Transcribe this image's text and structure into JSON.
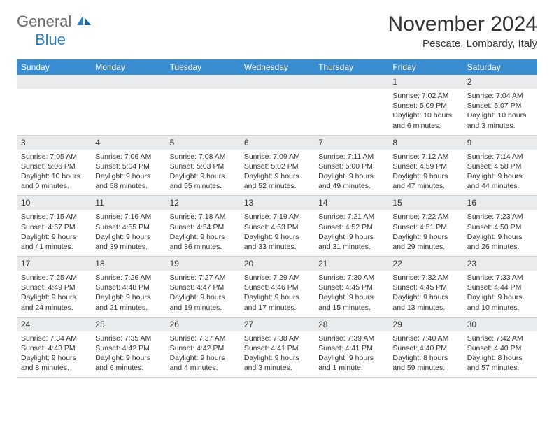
{
  "logo": {
    "text1": "General",
    "text2": "Blue"
  },
  "title": "November 2024",
  "location": "Pescate, Lombardy, Italy",
  "colors": {
    "header_bg": "#3a8dd0",
    "header_text": "#ffffff",
    "daynum_bg": "#e9ebec",
    "border": "#d0d0d0",
    "text": "#333333",
    "logo_gray": "#6b6b6b",
    "logo_blue": "#2f7fbf"
  },
  "weekdays": [
    "Sunday",
    "Monday",
    "Tuesday",
    "Wednesday",
    "Thursday",
    "Friday",
    "Saturday"
  ],
  "weeks": [
    [
      null,
      null,
      null,
      null,
      null,
      {
        "n": "1",
        "sr": "7:02 AM",
        "ss": "5:09 PM",
        "dl": "10 hours and 6 minutes."
      },
      {
        "n": "2",
        "sr": "7:04 AM",
        "ss": "5:07 PM",
        "dl": "10 hours and 3 minutes."
      }
    ],
    [
      {
        "n": "3",
        "sr": "7:05 AM",
        "ss": "5:06 PM",
        "dl": "10 hours and 0 minutes."
      },
      {
        "n": "4",
        "sr": "7:06 AM",
        "ss": "5:04 PM",
        "dl": "9 hours and 58 minutes."
      },
      {
        "n": "5",
        "sr": "7:08 AM",
        "ss": "5:03 PM",
        "dl": "9 hours and 55 minutes."
      },
      {
        "n": "6",
        "sr": "7:09 AM",
        "ss": "5:02 PM",
        "dl": "9 hours and 52 minutes."
      },
      {
        "n": "7",
        "sr": "7:11 AM",
        "ss": "5:00 PM",
        "dl": "9 hours and 49 minutes."
      },
      {
        "n": "8",
        "sr": "7:12 AM",
        "ss": "4:59 PM",
        "dl": "9 hours and 47 minutes."
      },
      {
        "n": "9",
        "sr": "7:14 AM",
        "ss": "4:58 PM",
        "dl": "9 hours and 44 minutes."
      }
    ],
    [
      {
        "n": "10",
        "sr": "7:15 AM",
        "ss": "4:57 PM",
        "dl": "9 hours and 41 minutes."
      },
      {
        "n": "11",
        "sr": "7:16 AM",
        "ss": "4:55 PM",
        "dl": "9 hours and 39 minutes."
      },
      {
        "n": "12",
        "sr": "7:18 AM",
        "ss": "4:54 PM",
        "dl": "9 hours and 36 minutes."
      },
      {
        "n": "13",
        "sr": "7:19 AM",
        "ss": "4:53 PM",
        "dl": "9 hours and 33 minutes."
      },
      {
        "n": "14",
        "sr": "7:21 AM",
        "ss": "4:52 PM",
        "dl": "9 hours and 31 minutes."
      },
      {
        "n": "15",
        "sr": "7:22 AM",
        "ss": "4:51 PM",
        "dl": "9 hours and 29 minutes."
      },
      {
        "n": "16",
        "sr": "7:23 AM",
        "ss": "4:50 PM",
        "dl": "9 hours and 26 minutes."
      }
    ],
    [
      {
        "n": "17",
        "sr": "7:25 AM",
        "ss": "4:49 PM",
        "dl": "9 hours and 24 minutes."
      },
      {
        "n": "18",
        "sr": "7:26 AM",
        "ss": "4:48 PM",
        "dl": "9 hours and 21 minutes."
      },
      {
        "n": "19",
        "sr": "7:27 AM",
        "ss": "4:47 PM",
        "dl": "9 hours and 19 minutes."
      },
      {
        "n": "20",
        "sr": "7:29 AM",
        "ss": "4:46 PM",
        "dl": "9 hours and 17 minutes."
      },
      {
        "n": "21",
        "sr": "7:30 AM",
        "ss": "4:45 PM",
        "dl": "9 hours and 15 minutes."
      },
      {
        "n": "22",
        "sr": "7:32 AM",
        "ss": "4:45 PM",
        "dl": "9 hours and 13 minutes."
      },
      {
        "n": "23",
        "sr": "7:33 AM",
        "ss": "4:44 PM",
        "dl": "9 hours and 10 minutes."
      }
    ],
    [
      {
        "n": "24",
        "sr": "7:34 AM",
        "ss": "4:43 PM",
        "dl": "9 hours and 8 minutes."
      },
      {
        "n": "25",
        "sr": "7:35 AM",
        "ss": "4:42 PM",
        "dl": "9 hours and 6 minutes."
      },
      {
        "n": "26",
        "sr": "7:37 AM",
        "ss": "4:42 PM",
        "dl": "9 hours and 4 minutes."
      },
      {
        "n": "27",
        "sr": "7:38 AM",
        "ss": "4:41 PM",
        "dl": "9 hours and 3 minutes."
      },
      {
        "n": "28",
        "sr": "7:39 AM",
        "ss": "4:41 PM",
        "dl": "9 hours and 1 minute."
      },
      {
        "n": "29",
        "sr": "7:40 AM",
        "ss": "4:40 PM",
        "dl": "8 hours and 59 minutes."
      },
      {
        "n": "30",
        "sr": "7:42 AM",
        "ss": "4:40 PM",
        "dl": "8 hours and 57 minutes."
      }
    ]
  ],
  "labels": {
    "sunrise": "Sunrise:",
    "sunset": "Sunset:",
    "daylight": "Daylight:"
  }
}
